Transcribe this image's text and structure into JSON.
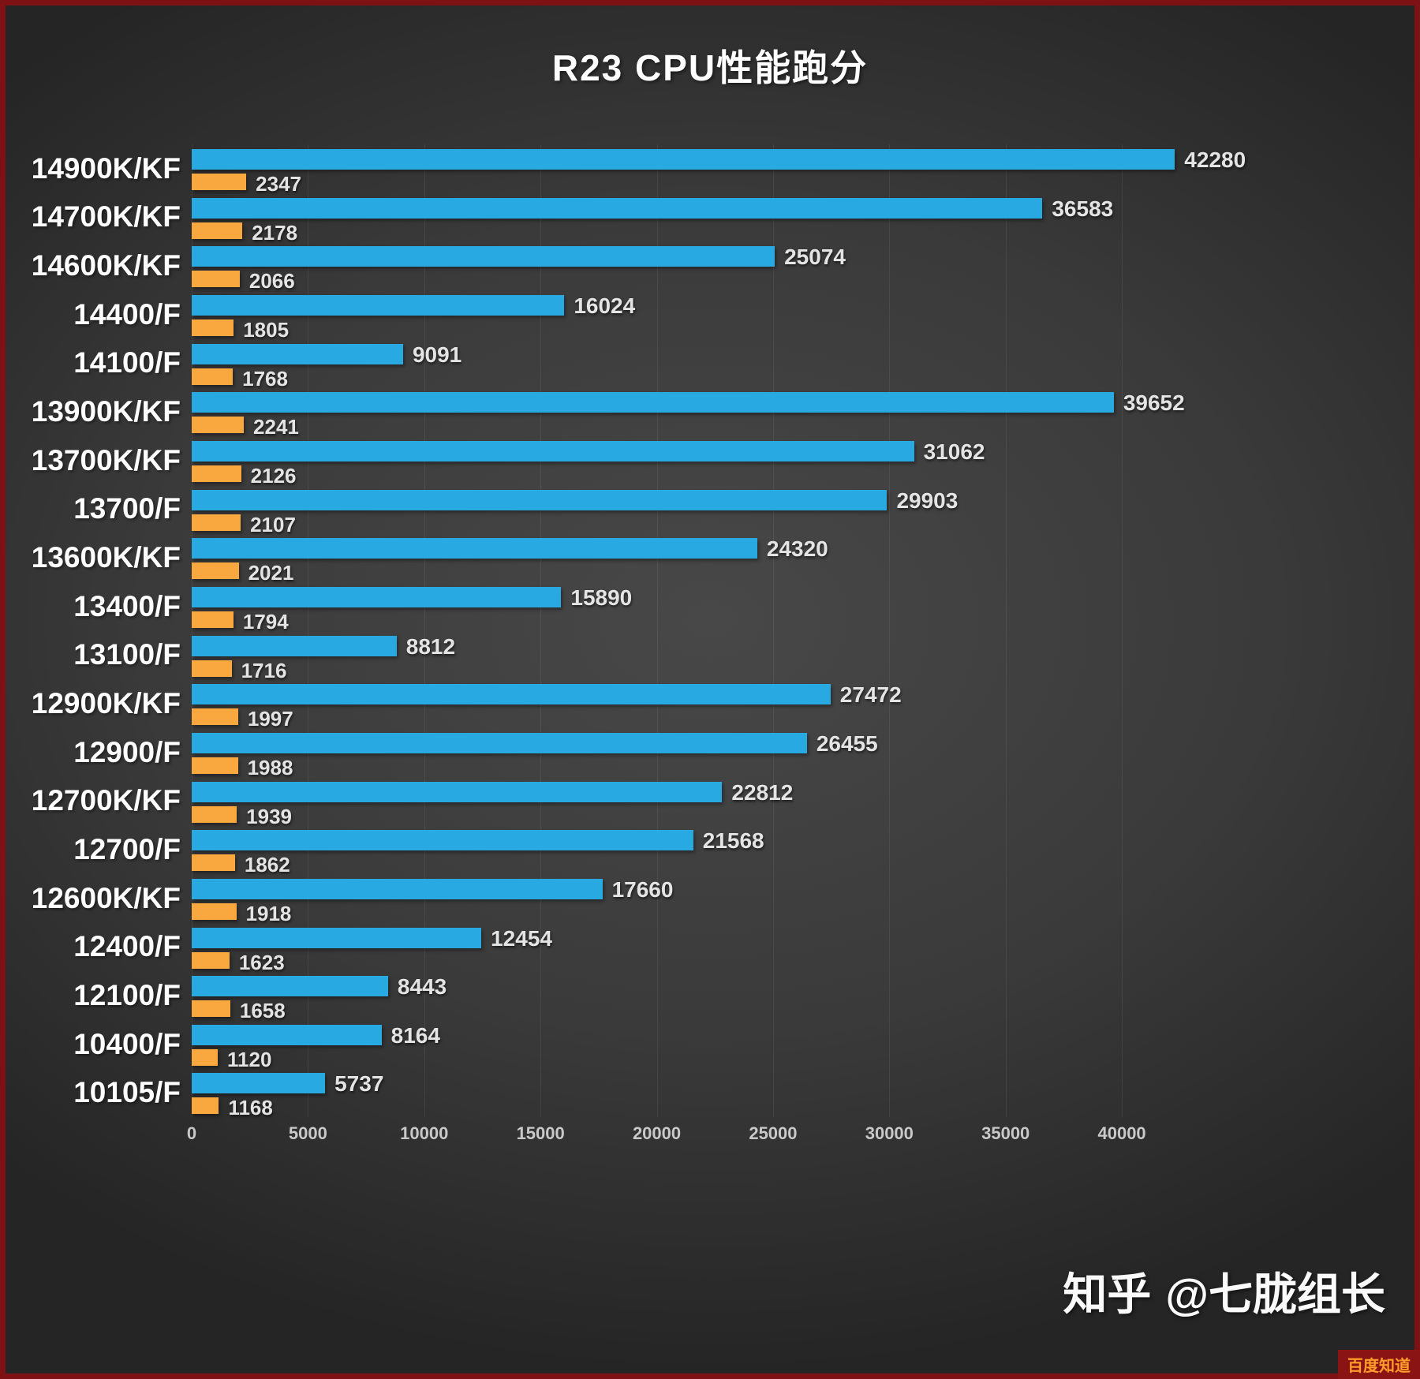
{
  "watermark": {
    "brand": "知乎",
    "author": "@七胧组长",
    "corner": "百度知道"
  },
  "colors": {
    "multi_core_bar": "#29a9e1",
    "single_core_bar": "#f8a83e",
    "background": "#3a3a3a",
    "frame": "#7d1113",
    "label_text": "#ffffff",
    "value_text": "#e4e4e4",
    "tick_text": "#c9c9c9"
  },
  "chart_data": {
    "type": "bar",
    "orientation": "horizontal",
    "title": "R23 CPU性能跑分",
    "categories": [
      "14900K/KF",
      "14700K/KF",
      "14600K/KF",
      "14400/F",
      "14100/F",
      "13900K/KF",
      "13700K/KF",
      "13700/F",
      "13600K/KF",
      "13400/F",
      "13100/F",
      "12900K/KF",
      "12900/F",
      "12700K/KF",
      "12700/F",
      "12600K/KF",
      "12400/F",
      "12100/F",
      "10400/F",
      "10105/F"
    ],
    "series": [
      {
        "name": "multi-core-score",
        "color": "#29a9e1",
        "values": [
          42280,
          36583,
          25074,
          16024,
          9091,
          39652,
          31062,
          29903,
          24320,
          15890,
          8812,
          27472,
          26455,
          22812,
          21568,
          17660,
          12454,
          8443,
          8164,
          5737
        ]
      },
      {
        "name": "single-core-score",
        "color": "#f8a83e",
        "values": [
          2347,
          2178,
          2066,
          1805,
          1768,
          2241,
          2126,
          2107,
          2021,
          1794,
          1716,
          1997,
          1988,
          1939,
          1862,
          1918,
          1623,
          1658,
          1120,
          1168
        ]
      }
    ],
    "x_ticks": [
      0,
      5000,
      10000,
      15000,
      20000,
      25000,
      30000,
      35000,
      40000
    ],
    "xlim": [
      0,
      44000
    ],
    "grid": true,
    "legend": false
  }
}
